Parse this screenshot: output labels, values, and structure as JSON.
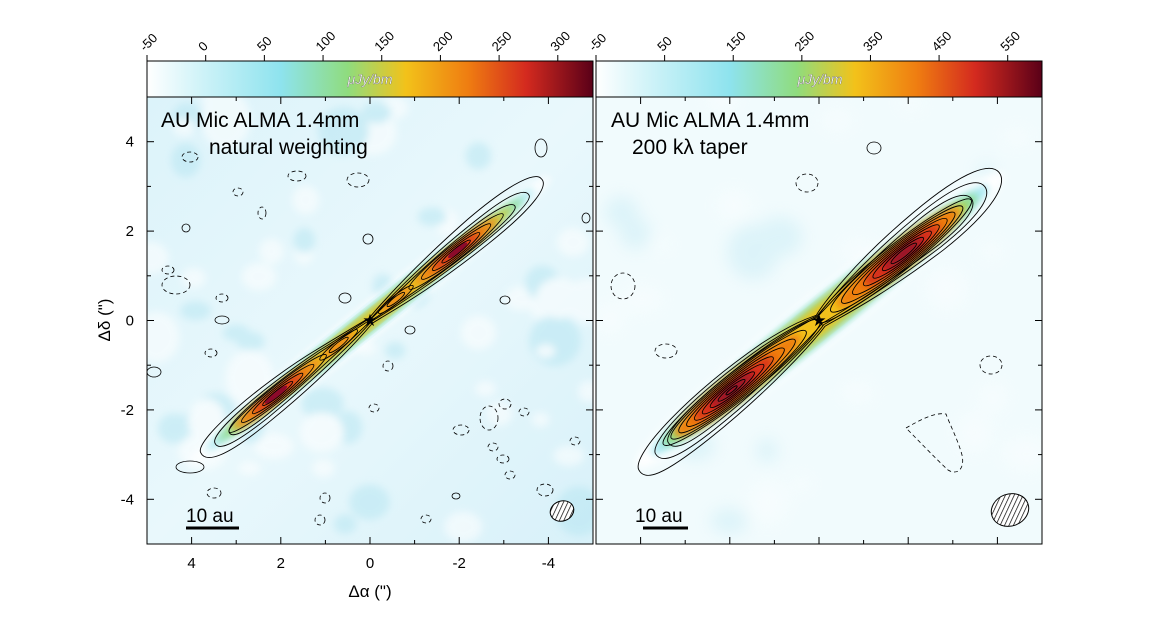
{
  "chart_data": [
    {
      "type": "heatmap",
      "title_line1": "AU Mic ALMA 1.4mm",
      "title_line2": "natural weighting",
      "xlabel": "Δα (\")",
      "ylabel": "Δδ (\")",
      "xlim": [
        5,
        -5
      ],
      "ylim": [
        -5,
        5
      ],
      "xticks": [
        "4",
        "2",
        "0",
        "-2",
        "-4"
      ],
      "yticks": [
        "4",
        "2",
        "0",
        "-2",
        "-4"
      ],
      "colorbar": {
        "label": "μJy/bm",
        "range": [
          -50,
          330
        ],
        "ticks": [
          "-50",
          "0",
          "50",
          "100",
          "150",
          "200",
          "250",
          "300"
        ]
      },
      "scalebar_label": "10 au",
      "star_position": [
        0,
        0
      ],
      "disk_peaks": [
        {
          "x": 2.4,
          "y": -1.7,
          "value": 320
        },
        {
          "x": -2.1,
          "y": 1.6,
          "value": 300
        },
        {
          "x": 0.9,
          "y": -0.6,
          "value": 200
        },
        {
          "x": -0.6,
          "y": 0.5,
          "value": 170
        }
      ],
      "disk_position_angle_deg": 128.5
    },
    {
      "type": "heatmap",
      "title_line1": "AU Mic ALMA 1.4mm",
      "title_line2": "200 kλ taper",
      "xlim": [
        5,
        -5
      ],
      "ylim": [
        -5,
        5
      ],
      "colorbar": {
        "label": "μJy/bm",
        "range": [
          -50,
          600
        ],
        "ticks": [
          "-50",
          "50",
          "150",
          "250",
          "350",
          "450",
          "550"
        ]
      },
      "scalebar_label": "10 au",
      "star_position": [
        0,
        0
      ],
      "disk_peaks": [
        {
          "x": 2.1,
          "y": -1.7,
          "value": 580
        },
        {
          "x": -2.0,
          "y": 1.7,
          "value": 560
        },
        {
          "x": 0.8,
          "y": -0.6,
          "value": 380
        },
        {
          "x": -0.7,
          "y": 0.6,
          "value": 360
        }
      ],
      "disk_position_angle_deg": 128.5
    }
  ],
  "colors": {
    "colormap": [
      "#ffffff",
      "#a6e8f2",
      "#7fd98a",
      "#f2c21a",
      "#ef7d11",
      "#d42a1f",
      "#8c0a2a",
      "#4a0012"
    ],
    "noise_background": "#e6f6fb",
    "contour": "#000000"
  }
}
